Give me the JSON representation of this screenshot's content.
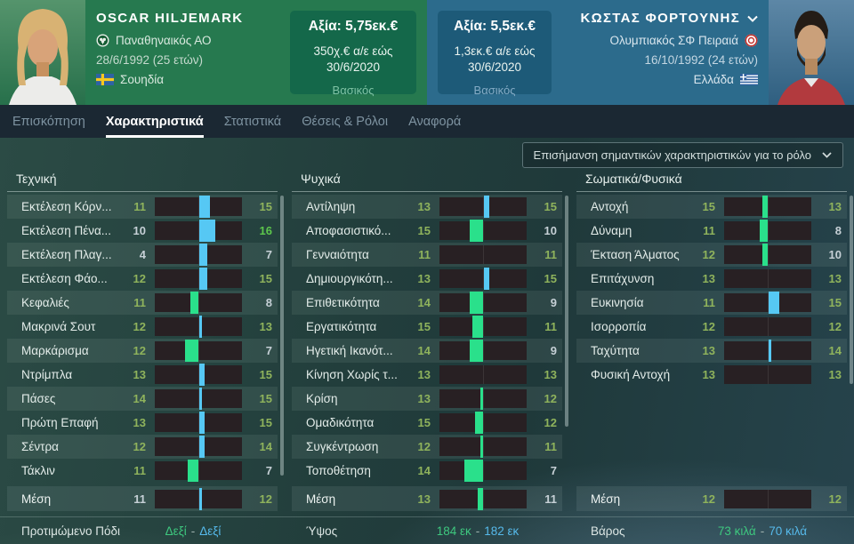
{
  "header": {
    "players": [
      {
        "name": "OSCAR HILJEMARK",
        "club": "Παναθηναικός ΑΟ",
        "birth": "28/6/1992 (25 ετών)",
        "nation": "Σουηδία",
        "value": "Αξία: 5,75εκ.€",
        "wage_line1": "350χ.€ α/ε εώς",
        "wage_line2": "30/6/2020",
        "status": "Βασικός"
      },
      {
        "name": "ΚΩΣΤΑΣ ΦΟΡΤΟΥΝΗΣ",
        "club": "Ολυμπιακός ΣΦ Πειραιά",
        "birth": "16/10/1992 (24 ετών)",
        "nation": "Ελλάδα",
        "value": "Αξία: 5,5εκ.€",
        "wage_line1": "1,3εκ.€ α/ε εώς",
        "wage_line2": "30/6/2020",
        "status": "Βασικός"
      }
    ]
  },
  "tabs": [
    {
      "name": "tab-overview",
      "label": "Επισκόπηση"
    },
    {
      "name": "tab-attributes",
      "label": "Χαρακτηριστικά"
    },
    {
      "name": "tab-stats",
      "label": "Στατιστικά"
    },
    {
      "name": "tab-positions-roles",
      "label": "Θέσεις & Ρόλοι"
    },
    {
      "name": "tab-report",
      "label": "Αναφορά"
    }
  ],
  "active_tab": 1,
  "toolbar": {
    "role_dropdown_label": "Επισήμανση σημαντικών χαρακτηριστικών για το ρόλο"
  },
  "sections": [
    {
      "title": "Τεχνική",
      "scrollbar_height": 315,
      "rows": [
        [
          "Εκτέλεση Κόρν...",
          11,
          15
        ],
        [
          "Εκτέλεση Πένα...",
          10,
          16
        ],
        [
          "Εκτέλεση Πλαγ...",
          4,
          7
        ],
        [
          "Εκτέλεση Φάο...",
          12,
          15
        ],
        [
          "Κεφαλιές",
          11,
          8
        ],
        [
          "Μακρινά Σουτ",
          12,
          13
        ],
        [
          "Μαρκάρισμα",
          12,
          7
        ],
        [
          "Ντρίμπλα",
          13,
          15
        ],
        [
          "Πάσες",
          14,
          15
        ],
        [
          "Πρώτη Επαφή",
          13,
          15
        ],
        [
          "Σέντρα",
          12,
          14
        ],
        [
          "Τάκλιν",
          11,
          7
        ]
      ],
      "mean": {
        "label": "Μέση",
        "p1": 11,
        "p2": 12
      }
    },
    {
      "title": "Ψυχικά",
      "scrollbar_height": 260,
      "rows": [
        [
          "Αντίληψη",
          13,
          15
        ],
        [
          "Αποφασιστικό...",
          15,
          10
        ],
        [
          "Γενναιότητα",
          11,
          11
        ],
        [
          "Δημιουργικότη...",
          13,
          15
        ],
        [
          "Επιθετικότητα",
          14,
          9
        ],
        [
          "Εργατικότητα",
          15,
          11
        ],
        [
          "Ηγετική Ικανότ...",
          14,
          9
        ],
        [
          "Κίνηση Χωρίς τ...",
          13,
          13
        ],
        [
          "Κρίση",
          13,
          12
        ],
        [
          "Ομαδικότητα",
          15,
          12
        ],
        [
          "Συγκέντρωση",
          12,
          11
        ],
        [
          "Τοποθέτηση",
          14,
          7
        ]
      ],
      "mean": {
        "label": "Μέση",
        "p1": 13,
        "p2": 11
      }
    },
    {
      "title": "Σωματικά/Φυσικά",
      "scrollbar_height": 212,
      "rows": [
        [
          "Αντοχή",
          15,
          13
        ],
        [
          "Δύναμη",
          11,
          8
        ],
        [
          "Έκταση Άλματος",
          12,
          10
        ],
        [
          "Επιτάχυνση",
          13,
          13
        ],
        [
          "Ευκινησία",
          11,
          15
        ],
        [
          "Ισορροπία",
          12,
          12
        ],
        [
          "Ταχύτητα",
          13,
          14
        ],
        [
          "Φυσική Αντοχή",
          13,
          13
        ]
      ],
      "mean": {
        "label": "Μέση",
        "p1": 12,
        "p2": 12
      }
    }
  ],
  "details": [
    {
      "label": "Προτιμώμενο Πόδι",
      "p1": "Δεξί",
      "sep": "-",
      "p2": "Δεξί"
    },
    {
      "label": "Ύψος",
      "p1": "184 εκ",
      "sep": "-",
      "p2": "182 εκ"
    },
    {
      "label": "Βάρος",
      "p1": "73 κιλά",
      "sep": "-",
      "p2": "70 κιλά"
    }
  ],
  "colors": {
    "p1_bar": "#2ae08b",
    "p2_bar": "#56c8f4",
    "p1_text": "#3ec87f",
    "p2_text": "#56b9ea",
    "attr_high": "#5dc74c",
    "attr_good": "#8fb35c",
    "attr_low": "#c6d0d6",
    "p1_header_bg": "#26794f",
    "p2_header_bg": "#2c6b8c",
    "p1_valuebox_bg": "#14684a",
    "p2_valuebox_bg": "#1d5a78"
  }
}
